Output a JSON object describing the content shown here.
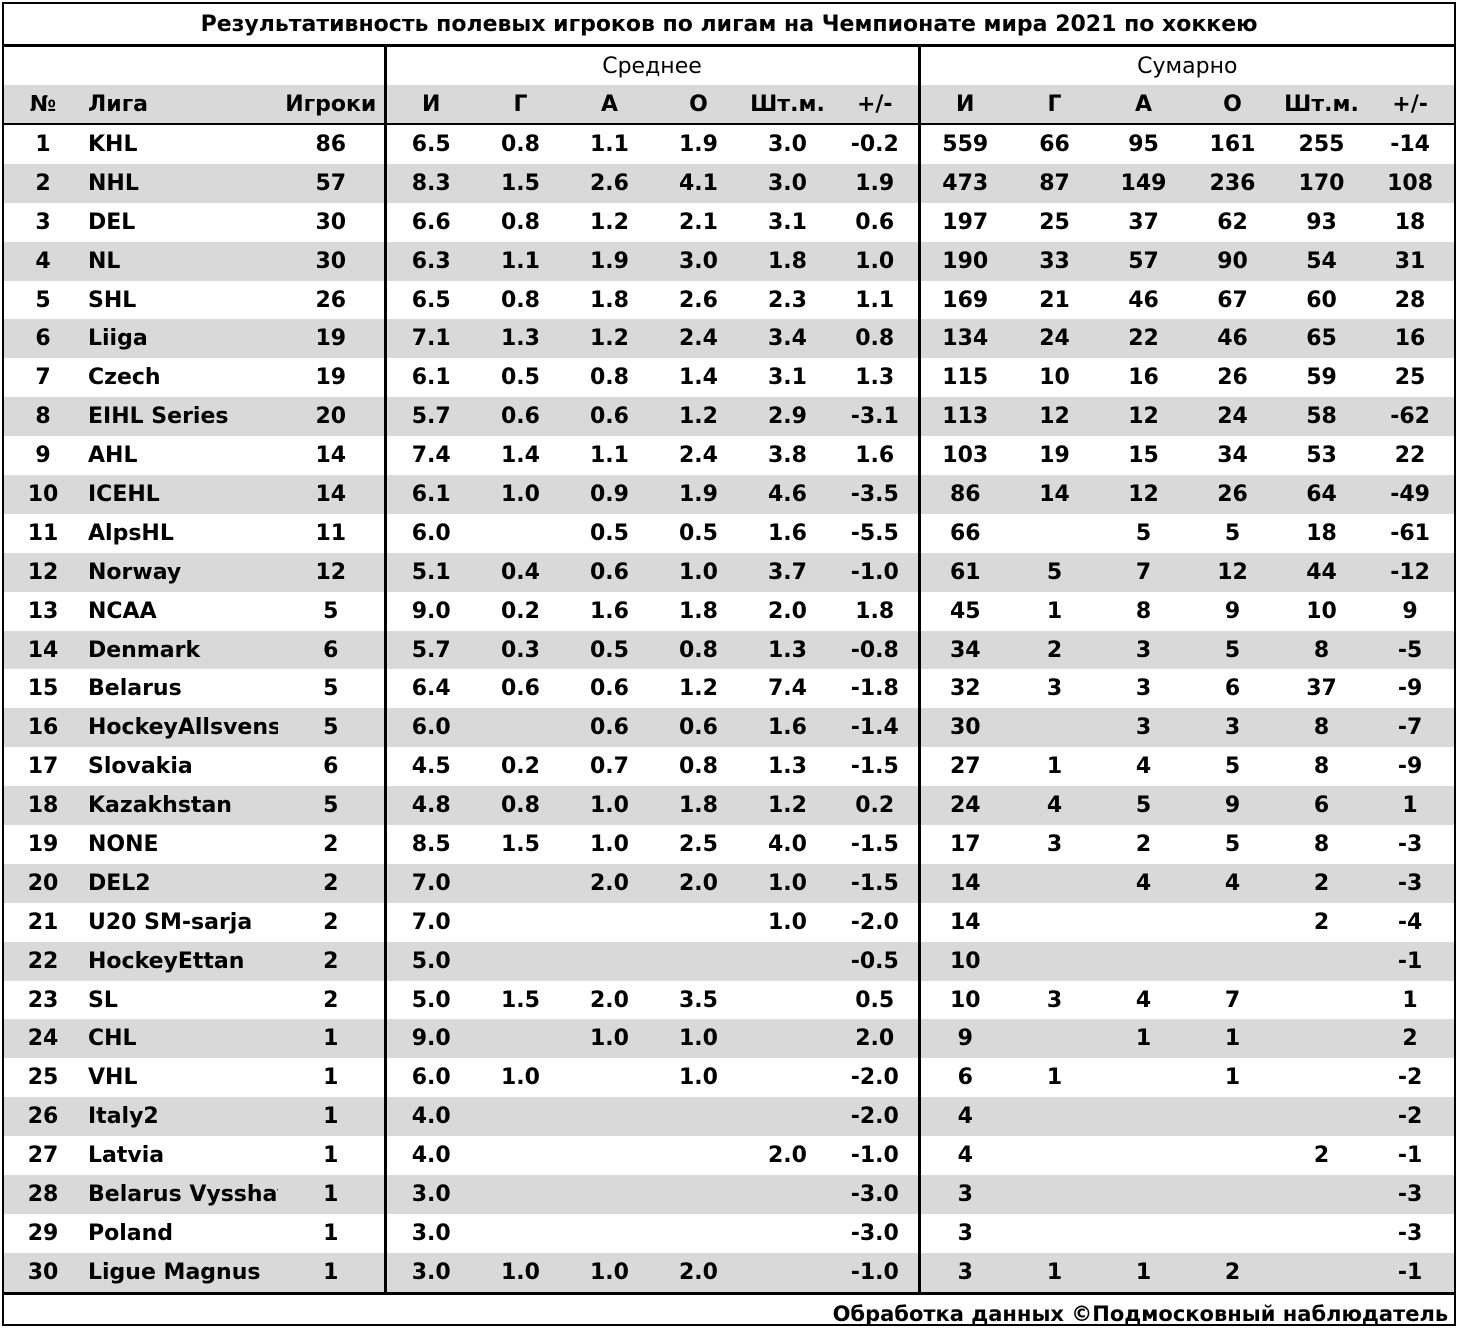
{
  "title": "Результативность полевых игроков по лигам на Чемпионате мира 2021 по хоккею",
  "groups": {
    "average": "Среднее",
    "total": "Сумарно"
  },
  "columns": {
    "num": "№",
    "league": "Лига",
    "players": "Игроки",
    "avg": [
      "И",
      "Г",
      "А",
      "О",
      "Шт.м.",
      "+/-"
    ],
    "sum": [
      "И",
      "Г",
      "А",
      "О",
      "Шт.м.",
      "+/-"
    ]
  },
  "rows": [
    [
      "1",
      "KHL",
      "86",
      "6.5",
      "0.8",
      "1.1",
      "1.9",
      "3.0",
      "-0.2",
      "559",
      "66",
      "95",
      "161",
      "255",
      "-14"
    ],
    [
      "2",
      "NHL",
      "57",
      "8.3",
      "1.5",
      "2.6",
      "4.1",
      "3.0",
      "1.9",
      "473",
      "87",
      "149",
      "236",
      "170",
      "108"
    ],
    [
      "3",
      "DEL",
      "30",
      "6.6",
      "0.8",
      "1.2",
      "2.1",
      "3.1",
      "0.6",
      "197",
      "25",
      "37",
      "62",
      "93",
      "18"
    ],
    [
      "4",
      "NL",
      "30",
      "6.3",
      "1.1",
      "1.9",
      "3.0",
      "1.8",
      "1.0",
      "190",
      "33",
      "57",
      "90",
      "54",
      "31"
    ],
    [
      "5",
      "SHL",
      "26",
      "6.5",
      "0.8",
      "1.8",
      "2.6",
      "2.3",
      "1.1",
      "169",
      "21",
      "46",
      "67",
      "60",
      "28"
    ],
    [
      "6",
      "Liiga",
      "19",
      "7.1",
      "1.3",
      "1.2",
      "2.4",
      "3.4",
      "0.8",
      "134",
      "24",
      "22",
      "46",
      "65",
      "16"
    ],
    [
      "7",
      "Czech",
      "19",
      "6.1",
      "0.5",
      "0.8",
      "1.4",
      "3.1",
      "1.3",
      "115",
      "10",
      "16",
      "26",
      "59",
      "25"
    ],
    [
      "8",
      "EIHL Series",
      "20",
      "5.7",
      "0.6",
      "0.6",
      "1.2",
      "2.9",
      "-3.1",
      "113",
      "12",
      "12",
      "24",
      "58",
      "-62"
    ],
    [
      "9",
      "AHL",
      "14",
      "7.4",
      "1.4",
      "1.1",
      "2.4",
      "3.8",
      "1.6",
      "103",
      "19",
      "15",
      "34",
      "53",
      "22"
    ],
    [
      "10",
      "ICEHL",
      "14",
      "6.1",
      "1.0",
      "0.9",
      "1.9",
      "4.6",
      "-3.5",
      "86",
      "14",
      "12",
      "26",
      "64",
      "-49"
    ],
    [
      "11",
      "AlpsHL",
      "11",
      "6.0",
      "",
      "0.5",
      "0.5",
      "1.6",
      "-5.5",
      "66",
      "",
      "5",
      "5",
      "18",
      "-61"
    ],
    [
      "12",
      "Norway",
      "12",
      "5.1",
      "0.4",
      "0.6",
      "1.0",
      "3.7",
      "-1.0",
      "61",
      "5",
      "7",
      "12",
      "44",
      "-12"
    ],
    [
      "13",
      "NCAA",
      "5",
      "9.0",
      "0.2",
      "1.6",
      "1.8",
      "2.0",
      "1.8",
      "45",
      "1",
      "8",
      "9",
      "10",
      "9"
    ],
    [
      "14",
      "Denmark",
      "6",
      "5.7",
      "0.3",
      "0.5",
      "0.8",
      "1.3",
      "-0.8",
      "34",
      "2",
      "3",
      "5",
      "8",
      "-5"
    ],
    [
      "15",
      "Belarus",
      "5",
      "6.4",
      "0.6",
      "0.6",
      "1.2",
      "7.4",
      "-1.8",
      "32",
      "3",
      "3",
      "6",
      "37",
      "-9"
    ],
    [
      "16",
      "HockeyAllsvens",
      "5",
      "6.0",
      "",
      "0.6",
      "0.6",
      "1.6",
      "-1.4",
      "30",
      "",
      "3",
      "3",
      "8",
      "-7"
    ],
    [
      "17",
      "Slovakia",
      "6",
      "4.5",
      "0.2",
      "0.7",
      "0.8",
      "1.3",
      "-1.5",
      "27",
      "1",
      "4",
      "5",
      "8",
      "-9"
    ],
    [
      "18",
      "Kazakhstan",
      "5",
      "4.8",
      "0.8",
      "1.0",
      "1.8",
      "1.2",
      "0.2",
      "24",
      "4",
      "5",
      "9",
      "6",
      "1"
    ],
    [
      "19",
      "NONE",
      "2",
      "8.5",
      "1.5",
      "1.0",
      "2.5",
      "4.0",
      "-1.5",
      "17",
      "3",
      "2",
      "5",
      "8",
      "-3"
    ],
    [
      "20",
      "DEL2",
      "2",
      "7.0",
      "",
      "2.0",
      "2.0",
      "1.0",
      "-1.5",
      "14",
      "",
      "4",
      "4",
      "2",
      "-3"
    ],
    [
      "21",
      "U20 SM-sarja",
      "2",
      "7.0",
      "",
      "",
      "",
      "1.0",
      "-2.0",
      "14",
      "",
      "",
      "",
      "2",
      "-4"
    ],
    [
      "22",
      "HockeyEttan",
      "2",
      "5.0",
      "",
      "",
      "",
      "",
      "-0.5",
      "10",
      "",
      "",
      "",
      "",
      "-1"
    ],
    [
      "23",
      "SL",
      "2",
      "5.0",
      "1.5",
      "2.0",
      "3.5",
      "",
      "0.5",
      "10",
      "3",
      "4",
      "7",
      "",
      "1"
    ],
    [
      "24",
      "CHL",
      "1",
      "9.0",
      "",
      "1.0",
      "1.0",
      "",
      "2.0",
      "9",
      "",
      "1",
      "1",
      "",
      "2"
    ],
    [
      "25",
      "VHL",
      "1",
      "6.0",
      "1.0",
      "",
      "1.0",
      "",
      "-2.0",
      "6",
      "1",
      "",
      "1",
      "",
      "-2"
    ],
    [
      "26",
      "Italy2",
      "1",
      "4.0",
      "",
      "",
      "",
      "",
      "-2.0",
      "4",
      "",
      "",
      "",
      "",
      "-2"
    ],
    [
      "27",
      "Latvia",
      "1",
      "4.0",
      "",
      "",
      "",
      "2.0",
      "-1.0",
      "4",
      "",
      "",
      "",
      "2",
      "-1"
    ],
    [
      "28",
      "Belarus Vysshay",
      "1",
      "3.0",
      "",
      "",
      "",
      "",
      "-3.0",
      "3",
      "",
      "",
      "",
      "",
      "-3"
    ],
    [
      "29",
      "Poland",
      "1",
      "3.0",
      "",
      "",
      "",
      "",
      "-3.0",
      "3",
      "",
      "",
      "",
      "",
      "-3"
    ],
    [
      "30",
      "Ligue Magnus",
      "1",
      "3.0",
      "1.0",
      "1.0",
      "2.0",
      "",
      "-1.0",
      "3",
      "1",
      "1",
      "2",
      "",
      "-1"
    ]
  ],
  "footer": "Обработка данных ©Подмосковный наблюдатель"
}
